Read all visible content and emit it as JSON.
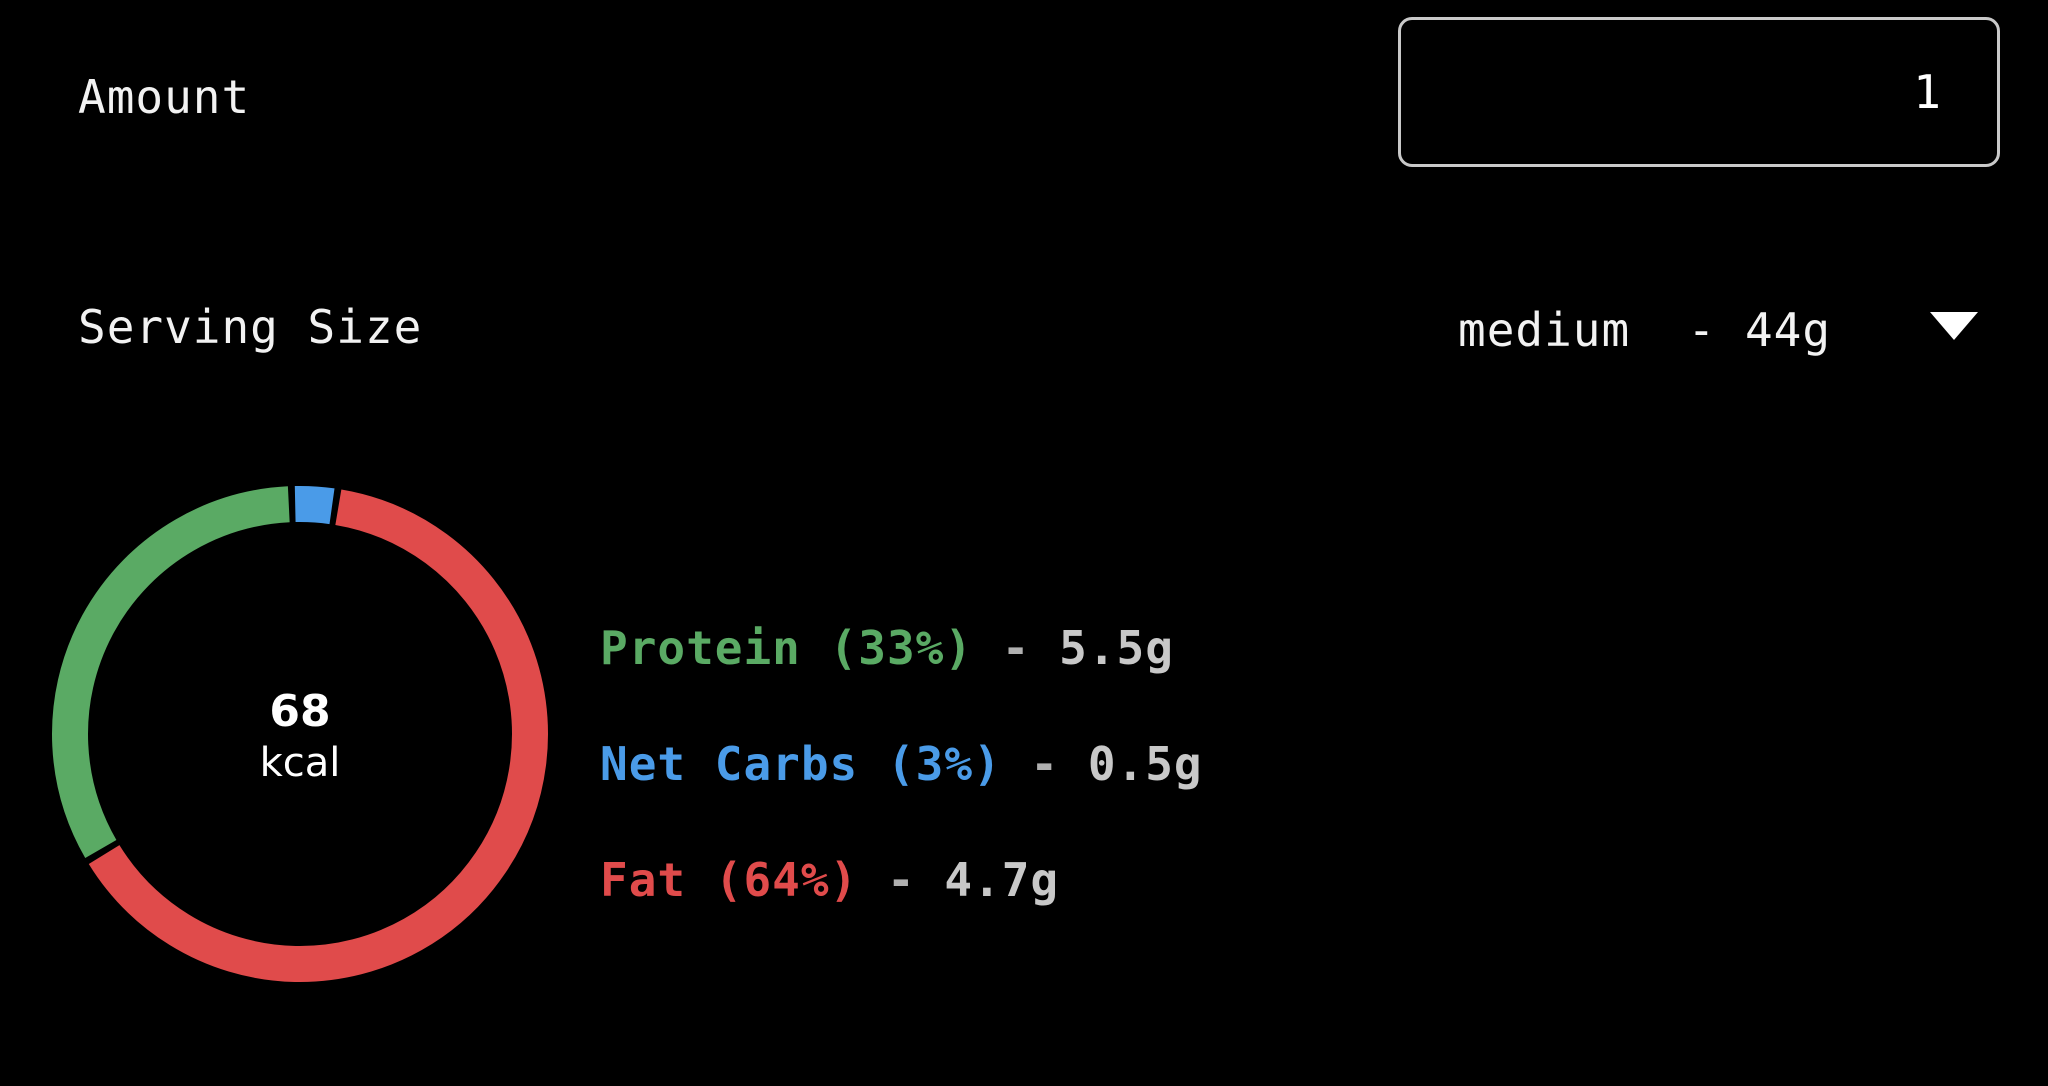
{
  "amount": {
    "label": "Amount",
    "value": "1"
  },
  "serving": {
    "label": "Serving Size",
    "selected": "medium  - 44g",
    "icon": "chevron-down-icon"
  },
  "nutrition": {
    "kcal_value": "68",
    "kcal_unit": "kcal",
    "macros": [
      {
        "name": "Protein (33%)",
        "separator": " - ",
        "amount": "5.5g",
        "percent": 33,
        "color": "#5aaa64"
      },
      {
        "name": "Net Carbs (3%)",
        "separator": " - ",
        "amount": "0.5g",
        "percent": 3,
        "color": "#4a9be8"
      },
      {
        "name": "Fat (64%)",
        "separator": " - ",
        "amount": "4.7g",
        "percent": 64,
        "color": "#e04b4b"
      }
    ]
  }
}
